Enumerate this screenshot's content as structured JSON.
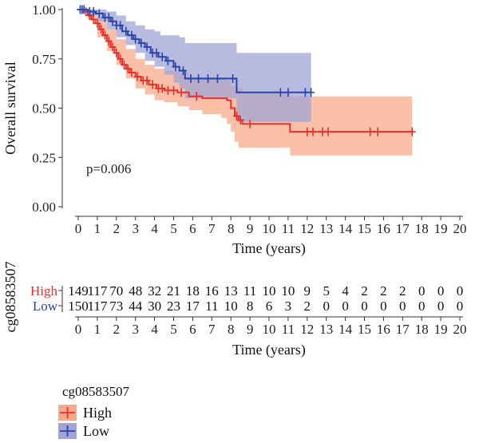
{
  "chart_data": {
    "type": "line",
    "subtype": "kaplan-meier",
    "title": "",
    "xlabel": "Time (years)",
    "ylabel": "Overall survival",
    "xlim": [
      0,
      20
    ],
    "ylim": [
      0,
      1
    ],
    "x_ticks": [
      0,
      1,
      2,
      3,
      4,
      5,
      6,
      7,
      8,
      9,
      10,
      11,
      12,
      13,
      14,
      15,
      16,
      17,
      18,
      19,
      20
    ],
    "y_ticks": [
      "0.00",
      "0.25",
      "0.50",
      "0.75",
      "1.00"
    ],
    "annotation": "p=0.006",
    "grid": false,
    "series": [
      {
        "name": "High",
        "color": "#e8302a",
        "band_color": "#f7a98a",
        "steps": [
          [
            0,
            1.0
          ],
          [
            0.3,
            0.99
          ],
          [
            0.5,
            0.97
          ],
          [
            0.7,
            0.95
          ],
          [
            0.9,
            0.93
          ],
          [
            1.1,
            0.9
          ],
          [
            1.3,
            0.87
          ],
          [
            1.5,
            0.84
          ],
          [
            1.7,
            0.81
          ],
          [
            1.9,
            0.78
          ],
          [
            2.1,
            0.75
          ],
          [
            2.3,
            0.72
          ],
          [
            2.5,
            0.7
          ],
          [
            2.7,
            0.68
          ],
          [
            3.0,
            0.66
          ],
          [
            3.3,
            0.64
          ],
          [
            3.7,
            0.62
          ],
          [
            4.1,
            0.6
          ],
          [
            4.5,
            0.59
          ],
          [
            5.2,
            0.58
          ],
          [
            5.8,
            0.56
          ],
          [
            6.5,
            0.55
          ],
          [
            7.8,
            0.54
          ],
          [
            8.0,
            0.5
          ],
          [
            8.2,
            0.46
          ],
          [
            8.4,
            0.44
          ],
          [
            8.6,
            0.42
          ],
          [
            11.1,
            0.38
          ],
          [
            17.5,
            0.38
          ]
        ],
        "lower": [
          [
            0,
            1.0
          ],
          [
            0.5,
            0.95
          ],
          [
            1.0,
            0.86
          ],
          [
            1.5,
            0.79
          ],
          [
            2.0,
            0.72
          ],
          [
            2.5,
            0.65
          ],
          [
            3.0,
            0.6
          ],
          [
            3.5,
            0.57
          ],
          [
            4.0,
            0.54
          ],
          [
            4.5,
            0.53
          ],
          [
            5.2,
            0.51
          ],
          [
            5.8,
            0.49
          ],
          [
            6.5,
            0.47
          ],
          [
            7.5,
            0.45
          ],
          [
            7.8,
            0.42
          ],
          [
            8.0,
            0.38
          ],
          [
            8.2,
            0.33
          ],
          [
            8.4,
            0.3
          ],
          [
            11.1,
            0.26
          ],
          [
            17.5,
            0.26
          ]
        ],
        "upper": [
          [
            0,
            1.0
          ],
          [
            0.5,
            1.0
          ],
          [
            1.0,
            0.96
          ],
          [
            1.5,
            0.9
          ],
          [
            2.0,
            0.85
          ],
          [
            2.5,
            0.8
          ],
          [
            3.0,
            0.75
          ],
          [
            3.5,
            0.72
          ],
          [
            4.0,
            0.7
          ],
          [
            4.5,
            0.69
          ],
          [
            5.2,
            0.68
          ],
          [
            5.8,
            0.66
          ],
          [
            6.5,
            0.65
          ],
          [
            7.8,
            0.64
          ],
          [
            8.0,
            0.61
          ],
          [
            8.4,
            0.6
          ],
          [
            8.6,
            0.58
          ],
          [
            11.1,
            0.56
          ],
          [
            17.5,
            0.56
          ]
        ],
        "censor": [
          0.2,
          0.4,
          0.6,
          0.8,
          1.0,
          1.2,
          1.4,
          1.6,
          1.8,
          2.0,
          2.2,
          2.4,
          2.6,
          2.8,
          3.1,
          3.4,
          3.6,
          3.9,
          4.2,
          4.4,
          4.7,
          5.0,
          5.4,
          6.2,
          8.3,
          8.5,
          9.0,
          12.0,
          12.3,
          12.8,
          13.1,
          15.3,
          15.7,
          17.5
        ]
      },
      {
        "name": "Low",
        "color": "#2b44a8",
        "band_color": "#a0a4d6",
        "steps": [
          [
            0,
            1.0
          ],
          [
            0.5,
            0.99
          ],
          [
            0.9,
            0.98
          ],
          [
            1.3,
            0.96
          ],
          [
            1.7,
            0.94
          ],
          [
            2.0,
            0.92
          ],
          [
            2.3,
            0.89
          ],
          [
            2.6,
            0.87
          ],
          [
            2.9,
            0.85
          ],
          [
            3.2,
            0.83
          ],
          [
            3.5,
            0.81
          ],
          [
            3.8,
            0.78
          ],
          [
            4.2,
            0.76
          ],
          [
            4.6,
            0.74
          ],
          [
            5.0,
            0.71
          ],
          [
            5.3,
            0.69
          ],
          [
            5.6,
            0.65
          ],
          [
            8.3,
            0.58
          ],
          [
            12.2,
            0.58
          ]
        ],
        "lower": [
          [
            0,
            1.0
          ],
          [
            0.5,
            0.97
          ],
          [
            1.0,
            0.94
          ],
          [
            1.5,
            0.9
          ],
          [
            2.0,
            0.86
          ],
          [
            2.5,
            0.82
          ],
          [
            3.0,
            0.78
          ],
          [
            3.5,
            0.74
          ],
          [
            4.0,
            0.71
          ],
          [
            4.5,
            0.67
          ],
          [
            5.0,
            0.63
          ],
          [
            5.3,
            0.6
          ],
          [
            5.6,
            0.55
          ],
          [
            8.3,
            0.43
          ],
          [
            12.2,
            0.43
          ]
        ],
        "upper": [
          [
            0,
            1.0
          ],
          [
            0.5,
            1.0
          ],
          [
            1.0,
            1.0
          ],
          [
            1.5,
            0.99
          ],
          [
            2.0,
            0.97
          ],
          [
            2.5,
            0.94
          ],
          [
            3.0,
            0.92
          ],
          [
            3.5,
            0.9
          ],
          [
            4.0,
            0.89
          ],
          [
            4.3,
            0.87
          ],
          [
            5.3,
            0.86
          ],
          [
            5.6,
            0.83
          ],
          [
            8.3,
            0.78
          ],
          [
            12.2,
            0.78
          ]
        ],
        "censor": [
          0.1,
          0.2,
          0.3,
          0.6,
          0.8,
          1.1,
          1.4,
          1.6,
          1.8,
          2.0,
          2.2,
          2.5,
          2.8,
          3.0,
          3.3,
          3.6,
          3.9,
          4.1,
          4.4,
          4.7,
          5.1,
          5.5,
          5.9,
          6.3,
          6.8,
          7.3,
          8.1,
          10.6,
          11.0,
          11.9,
          12.2
        ]
      }
    ],
    "risk_table": {
      "ylabel": "cg08583507",
      "xlabel": "Time (years)",
      "x_ticks": [
        0,
        1,
        2,
        3,
        4,
        5,
        6,
        7,
        8,
        9,
        10,
        11,
        12,
        13,
        14,
        15,
        16,
        17,
        18,
        19,
        20
      ],
      "rows": [
        {
          "name": "High",
          "color": "#e8302a",
          "values": [
            149,
            117,
            70,
            48,
            32,
            21,
            18,
            16,
            13,
            11,
            10,
            10,
            9,
            5,
            4,
            2,
            2,
            2,
            0,
            0,
            0
          ]
        },
        {
          "name": "Low",
          "color": "#2b44a8",
          "values": [
            150,
            117,
            73,
            44,
            30,
            23,
            17,
            11,
            10,
            8,
            6,
            3,
            2,
            0,
            0,
            0,
            0,
            0,
            0,
            0,
            0
          ]
        }
      ]
    },
    "legend": {
      "title": "cg08583507",
      "placement": "bottom-left",
      "entries": [
        {
          "name": "High",
          "line_color": "#e8302a",
          "fill_color": "#f7a98a"
        },
        {
          "name": "Low",
          "line_color": "#2b44a8",
          "fill_color": "#a0a4d6"
        }
      ]
    }
  }
}
